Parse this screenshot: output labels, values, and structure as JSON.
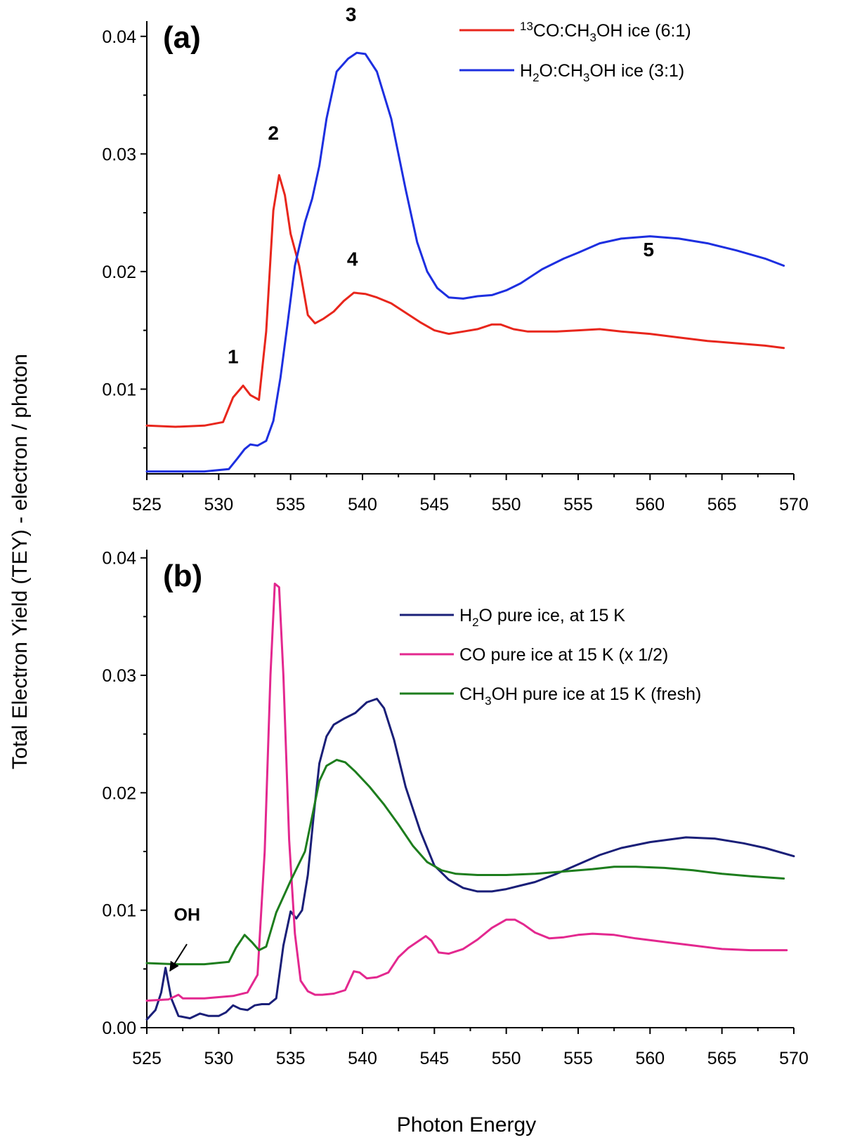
{
  "chart_data": [
    {
      "type": "line",
      "panel_label": "(a)",
      "xlabel": "",
      "ylabel": "Total Electron Yield (TEY) - electron / photon",
      "xlim": [
        525,
        570
      ],
      "ylim": [
        0.0028,
        0.0413
      ],
      "xticks": [
        525,
        530,
        535,
        540,
        545,
        550,
        555,
        560,
        565,
        570
      ],
      "xtick_labels": [
        "525",
        "530",
        "535",
        "540",
        "545",
        "550",
        "555",
        "560",
        "565",
        "570"
      ],
      "yticks": [
        0.01,
        0.02,
        0.03,
        0.04
      ],
      "ytick_labels": [
        "0.01",
        "0.02",
        "0.03",
        "0.04"
      ],
      "legend_position": "top-right",
      "series": [
        {
          "name": "13CO:CH3OH ice (6:1)",
          "legend_parts": [
            "13",
            "CO:CH",
            "3",
            "OH ice (6:1)"
          ],
          "color": "#e8261c",
          "x": [
            525.0,
            527.0,
            529.0,
            530.3,
            531.0,
            531.7,
            532.2,
            532.8,
            533.3,
            533.8,
            534.2,
            534.6,
            535.0,
            535.6,
            536.2,
            536.7,
            537.3,
            538.0,
            538.7,
            539.4,
            540.2,
            541.0,
            542.0,
            543.0,
            544.0,
            545.0,
            546.0,
            547.0,
            548.0,
            549.0,
            549.6,
            550.5,
            551.5,
            552.5,
            553.5,
            555.0,
            556.5,
            558.0,
            560.0,
            562.0,
            564.0,
            566.0,
            568.0,
            569.3
          ],
          "values": [
            0.0069,
            0.0068,
            0.0069,
            0.0072,
            0.0093,
            0.0103,
            0.0095,
            0.0091,
            0.0149,
            0.0252,
            0.0282,
            0.0265,
            0.0232,
            0.0205,
            0.0163,
            0.0156,
            0.016,
            0.0166,
            0.0175,
            0.0182,
            0.0181,
            0.0178,
            0.0173,
            0.0165,
            0.0157,
            0.015,
            0.0147,
            0.0149,
            0.0151,
            0.0155,
            0.0155,
            0.0151,
            0.0149,
            0.0149,
            0.0149,
            0.015,
            0.0151,
            0.0149,
            0.0147,
            0.0144,
            0.0141,
            0.0139,
            0.0137,
            0.0135
          ]
        },
        {
          "name": "H2O:CH3OH ice (3:1)",
          "legend_parts": [
            "H",
            "2",
            "O:CH",
            "3",
            "OH ice (3:1)"
          ],
          "color": "#1d2fe0",
          "x": [
            525.0,
            527.0,
            529.0,
            530.7,
            531.3,
            531.8,
            532.2,
            532.7,
            533.3,
            533.8,
            534.3,
            534.8,
            535.3,
            536.0,
            536.5,
            537.0,
            537.5,
            538.2,
            539.0,
            539.6,
            540.2,
            541.0,
            542.0,
            543.0,
            543.8,
            544.5,
            545.2,
            546.0,
            547.0,
            548.0,
            549.0,
            550.0,
            551.0,
            552.5,
            554.0,
            555.0,
            556.5,
            558.0,
            560.0,
            562.0,
            564.0,
            566.0,
            568.0,
            569.3
          ],
          "values": [
            0.003,
            0.003,
            0.003,
            0.0032,
            0.0041,
            0.0049,
            0.0053,
            0.0052,
            0.0056,
            0.0073,
            0.011,
            0.0157,
            0.0205,
            0.0242,
            0.0262,
            0.029,
            0.033,
            0.037,
            0.0381,
            0.0386,
            0.0385,
            0.037,
            0.033,
            0.027,
            0.0225,
            0.02,
            0.0186,
            0.0178,
            0.0177,
            0.0179,
            0.018,
            0.0184,
            0.019,
            0.0202,
            0.0211,
            0.0216,
            0.0224,
            0.0228,
            0.023,
            0.0228,
            0.0224,
            0.0218,
            0.0211,
            0.0205
          ]
        }
      ],
      "annotations": [
        {
          "text": "1",
          "x": 531.0,
          "y": 0.0122
        },
        {
          "text": "2",
          "x": 533.8,
          "y": 0.0312
        },
        {
          "text": "3",
          "x": 539.2,
          "y": 0.0413
        },
        {
          "text": "4",
          "x": 539.3,
          "y": 0.0205
        },
        {
          "text": "5",
          "x": 559.9,
          "y": 0.0213
        }
      ]
    },
    {
      "type": "line",
      "panel_label": "(b)",
      "xlabel": "Photon Energy",
      "ylabel": "Total Electron Yield (TEY) - electron / photon",
      "xlim": [
        525,
        570
      ],
      "ylim": [
        0.0,
        0.0407
      ],
      "xticks": [
        525,
        530,
        535,
        540,
        545,
        550,
        555,
        560,
        565,
        570
      ],
      "xtick_labels": [
        "525",
        "530",
        "535",
        "540",
        "545",
        "550",
        "555",
        "560",
        "565",
        "570"
      ],
      "yticks": [
        0.0,
        0.01,
        0.02,
        0.03,
        0.04
      ],
      "ytick_labels": [
        "0.00",
        "0.01",
        "0.02",
        "0.03",
        "0.04"
      ],
      "legend_position": "top-right",
      "series": [
        {
          "name": "H2O pure ice, at 15 K",
          "legend_parts": [
            "H",
            "2",
            "O pure ice, at 15 K"
          ],
          "color": "#1a1f78",
          "x": [
            525.0,
            525.6,
            526.0,
            526.3,
            526.7,
            527.2,
            528.0,
            528.7,
            529.3,
            530.0,
            530.5,
            531.0,
            531.5,
            532.0,
            532.5,
            533.0,
            533.5,
            534.0,
            534.5,
            535.0,
            535.4,
            535.8,
            536.2,
            536.6,
            537.0,
            537.5,
            538.0,
            538.7,
            539.5,
            540.3,
            541.0,
            541.5,
            542.2,
            543.0,
            544.0,
            545.0,
            546.0,
            547.0,
            548.0,
            549.0,
            550.0,
            551.0,
            552.0,
            553.5,
            555.0,
            556.5,
            558.0,
            560.0,
            562.5,
            564.5,
            566.5,
            568.0,
            570.0
          ],
          "values": [
            0.0007,
            0.0015,
            0.003,
            0.0051,
            0.0025,
            0.001,
            0.0008,
            0.0012,
            0.001,
            0.001,
            0.0013,
            0.0019,
            0.0016,
            0.0015,
            0.0019,
            0.002,
            0.002,
            0.0025,
            0.007,
            0.0099,
            0.0093,
            0.01,
            0.013,
            0.018,
            0.0225,
            0.0248,
            0.0258,
            0.0263,
            0.0268,
            0.0277,
            0.028,
            0.0272,
            0.0245,
            0.0205,
            0.0168,
            0.0138,
            0.0126,
            0.0119,
            0.0116,
            0.0116,
            0.0118,
            0.0121,
            0.0124,
            0.0131,
            0.0139,
            0.0147,
            0.0153,
            0.0158,
            0.0162,
            0.0161,
            0.0157,
            0.0153,
            0.0146
          ]
        },
        {
          "name": "CO pure ice at 15 K (x 1/2)",
          "legend_parts": [
            "CO pure ice at 15 K (x 1/2)"
          ],
          "color": "#e3288f",
          "x": [
            525.0,
            526.5,
            527.2,
            527.5,
            528.0,
            529.0,
            530.0,
            531.0,
            532.0,
            532.7,
            533.2,
            533.6,
            533.9,
            534.2,
            534.5,
            534.9,
            535.3,
            535.7,
            536.2,
            536.7,
            537.2,
            538.0,
            538.8,
            539.4,
            539.8,
            540.3,
            541.0,
            541.8,
            542.5,
            543.2,
            543.8,
            544.4,
            544.8,
            545.3,
            546.0,
            547.0,
            548.0,
            549.0,
            550.0,
            550.6,
            551.2,
            552.0,
            553.0,
            554.0,
            555.0,
            556.0,
            557.5,
            559.0,
            561.0,
            563.0,
            565.0,
            567.0,
            569.5
          ],
          "values": [
            0.0023,
            0.0024,
            0.0028,
            0.0025,
            0.0025,
            0.0025,
            0.0026,
            0.0027,
            0.003,
            0.0045,
            0.015,
            0.03,
            0.0378,
            0.0375,
            0.03,
            0.016,
            0.008,
            0.004,
            0.0031,
            0.0028,
            0.0028,
            0.0029,
            0.0032,
            0.0048,
            0.0047,
            0.0042,
            0.0043,
            0.0047,
            0.006,
            0.0068,
            0.0073,
            0.0078,
            0.0074,
            0.0064,
            0.0063,
            0.0067,
            0.0075,
            0.0085,
            0.0092,
            0.0092,
            0.0088,
            0.0081,
            0.0076,
            0.0077,
            0.0079,
            0.008,
            0.0079,
            0.0076,
            0.0073,
            0.007,
            0.0067,
            0.0066,
            0.0066
          ]
        },
        {
          "name": "CH3OH pure ice at 15 K (fresh)",
          "legend_parts": [
            "CH",
            "3",
            "OH pure ice at 15 K (fresh)"
          ],
          "color": "#1d7d1d",
          "x": [
            525.0,
            527.0,
            529.0,
            530.7,
            531.2,
            531.8,
            532.3,
            532.8,
            533.3,
            534.0,
            535.0,
            536.0,
            536.5,
            537.0,
            537.5,
            538.2,
            538.8,
            539.5,
            540.5,
            541.5,
            542.5,
            543.5,
            544.5,
            545.5,
            546.5,
            548.0,
            550.0,
            552.0,
            554.0,
            556.0,
            557.5,
            559.0,
            561.0,
            563.0,
            565.0,
            567.0,
            569.3
          ],
          "values": [
            0.0055,
            0.0054,
            0.0054,
            0.0056,
            0.0068,
            0.0079,
            0.0073,
            0.0066,
            0.0069,
            0.0098,
            0.0125,
            0.015,
            0.018,
            0.021,
            0.0223,
            0.0228,
            0.0226,
            0.0218,
            0.0205,
            0.019,
            0.0173,
            0.0155,
            0.0141,
            0.0134,
            0.0131,
            0.013,
            0.013,
            0.0131,
            0.0133,
            0.0135,
            0.0137,
            0.0137,
            0.0136,
            0.0134,
            0.0131,
            0.0129,
            0.0127
          ]
        }
      ],
      "annotations": [
        {
          "text": "OH",
          "x": 527.8,
          "y": 0.0091
        }
      ]
    }
  ]
}
